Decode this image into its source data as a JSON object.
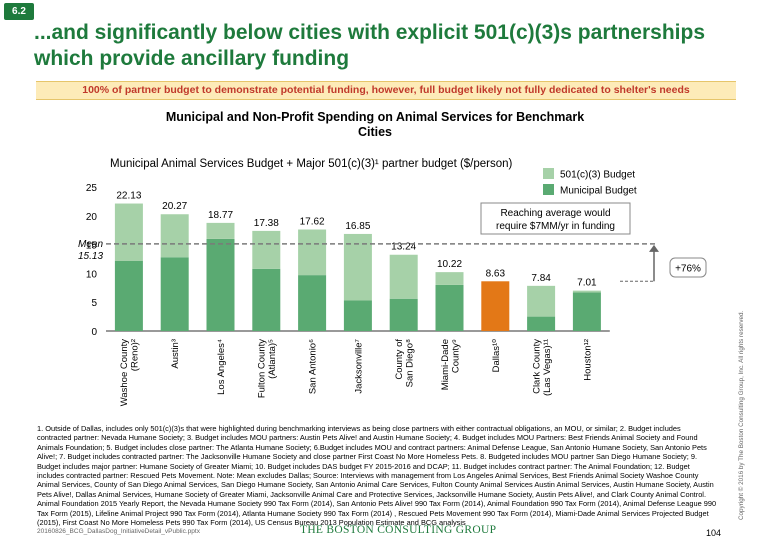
{
  "slide_number": "6.2",
  "title": "...and significantly below cities with explicit 501(c)(3)s partnerships which provide ancillary funding",
  "banner": "100% of partner budget to demonstrate potential funding, however, full budget likely not fully dedicated to shelter's needs",
  "chart_title": "Municipal and Non-Profit Spending on Animal Services for Benchmark Cities",
  "chart_subtitle": "Municipal Animal Services Budget + Major 501(c)(3)¹ partner budget ($/person)",
  "chart_data": {
    "type": "bar",
    "stacked": true,
    "categories": [
      "Washoe County (Reno)²",
      "Austin³",
      "Los Angeles⁴",
      "Fulton County (Atlanta)⁵",
      "San Antonio⁶",
      "Jacksonville⁷",
      "County of San Diego⁸",
      "Miami-Dade County⁹",
      "Dallas¹⁰",
      "Clark County (Las Vegas)¹¹",
      "Houston¹²"
    ],
    "category_lines": [
      [
        "Washoe County",
        "(Reno)²"
      ],
      [
        "Austin³"
      ],
      [
        "Los Angeles⁴"
      ],
      [
        "Fulton County",
        "(Atlanta)⁵"
      ],
      [
        "San Antonio⁶"
      ],
      [
        "Jacksonville⁷"
      ],
      [
        "County of",
        "San Diego⁸"
      ],
      [
        "Miami-Dade",
        "County⁹"
      ],
      [
        "Dallas¹⁰"
      ],
      [
        "Clark County",
        "(Las Vegas)¹¹"
      ],
      [
        "Houston¹²"
      ]
    ],
    "totals": [
      22.13,
      20.27,
      18.77,
      17.38,
      17.62,
      16.85,
      13.24,
      10.22,
      8.63,
      7.84,
      7.01
    ],
    "total_labels": [
      "22.13",
      "20.27",
      "18.77",
      "17.38",
      "17.62",
      "16.85",
      "13.24",
      "10.22",
      "8.63",
      "7.84",
      "7.01"
    ],
    "series": [
      {
        "name": "Municipal Budget",
        "values": [
          12.2,
          12.8,
          16.0,
          10.8,
          9.7,
          5.3,
          5.6,
          8.0,
          8.63,
          2.5,
          6.7
        ]
      },
      {
        "name": "501(c)(3) Budget",
        "values": [
          9.93,
          7.47,
          2.77,
          6.58,
          7.92,
          11.55,
          7.64,
          2.22,
          0,
          5.34,
          0.31
        ]
      }
    ],
    "highlight_category": "Dallas¹⁰",
    "yticks": [
      0,
      5,
      10,
      15,
      20,
      25
    ],
    "ytick_labels": [
      "0",
      "5",
      "10",
      "15",
      "20",
      "25"
    ],
    "ylim": [
      0,
      25
    ],
    "mean": 15.13,
    "mean_label": [
      "Mean",
      "15.13"
    ],
    "annotation": [
      "Reaching average would",
      "require $7MM/yr in funding"
    ],
    "increase_label": "+76%",
    "legend_position": "top-right",
    "colors": {
      "municipal": "#5aaa72",
      "partner": "#a6d1a8",
      "dallas": "#e37817",
      "mean_line": "#7a7a7a",
      "arrow": "#666666"
    }
  },
  "footnotes": "1. Outside of Dallas, includes only 501(c)(3)s that were highlighted during benchmarking interviews as being close partners with either contractual obligations, an MOU, or similar; 2. Budget includes contracted partner: Nevada Humane Society; 3. Budget includes MOU partners: Austin Pets Alive! and Austin Humane Society; 4. Budget includes MOU Partners: Best Friends Animal Society and Found Animals Foundation; 5. Budget includes close partner: The Atlanta Humane Society; 6.Budget includes MOU and contract partners: Animal Defense League, San Antonio Humane Society, San Antonio Pets Alive!; 7. Budget includes contracted partner: The Jacksonville Humane Society and close partner First Coast No More Homeless Pets. 8. Budgeted includes MOU partner San Diego Humane Society; 9. Budget includes major partner: Humane Society of Greater Miami; 10. Budget includes DAS budget FY 2015-2016 and DCAP; 11. Budget includes contract partner: The Animal Foundation; 12. Budget includes contracted partner: Rescued Pets Movement. Note: Mean excludes Dallas; Source: Interviews with management from Los Angeles Animal Services, Best Friends Animal Society Washoe County Animal Services, County of San Diego Animal Services, San Diego Humane Society, San Antonio Animal Care Services, Fulton County Animal Services Austin Animal Services, Austin Humane Society, Austin Pets Alive!, Dallas Animal Services, Humane Society of Greater Miami, Jacksonville Animal Care and Protective Services, Jacksonville Humane Society, Austin Pets Alive!, and Clark County Animal Control. Animal Foundation 2015 Yearly Report, the Nevada Humane Society 990 Tax Form (2014), San Antonio Pets Alive! 990 Tax Form (2014), Animal Foundation 990 Tax Form (2014), Animal Defense League 990 Tax Form (2015), Lifeline Animal Project 990 Tax Form (2014), Atlanta Humane Society 990 Tax Form (2014) , Rescued Pets Movement 990 Tax Form (2014), Miami-Dade Animal Services Projected Budget (2015), First Coast No More Homeless Pets 990 Tax Form (2014), US Census Bureau 2013 Population Estimate and BCG analysis",
  "footer": {
    "file_name": "20160826_BCG_DallasDog_InitiativeDetail_vPublic.pptx",
    "logo": "THE BOSTON CONSULTING GROUP",
    "page_number": "104",
    "copyright": "Copyright © 2016 by The Boston Consulting Group, Inc. All rights reserved."
  }
}
